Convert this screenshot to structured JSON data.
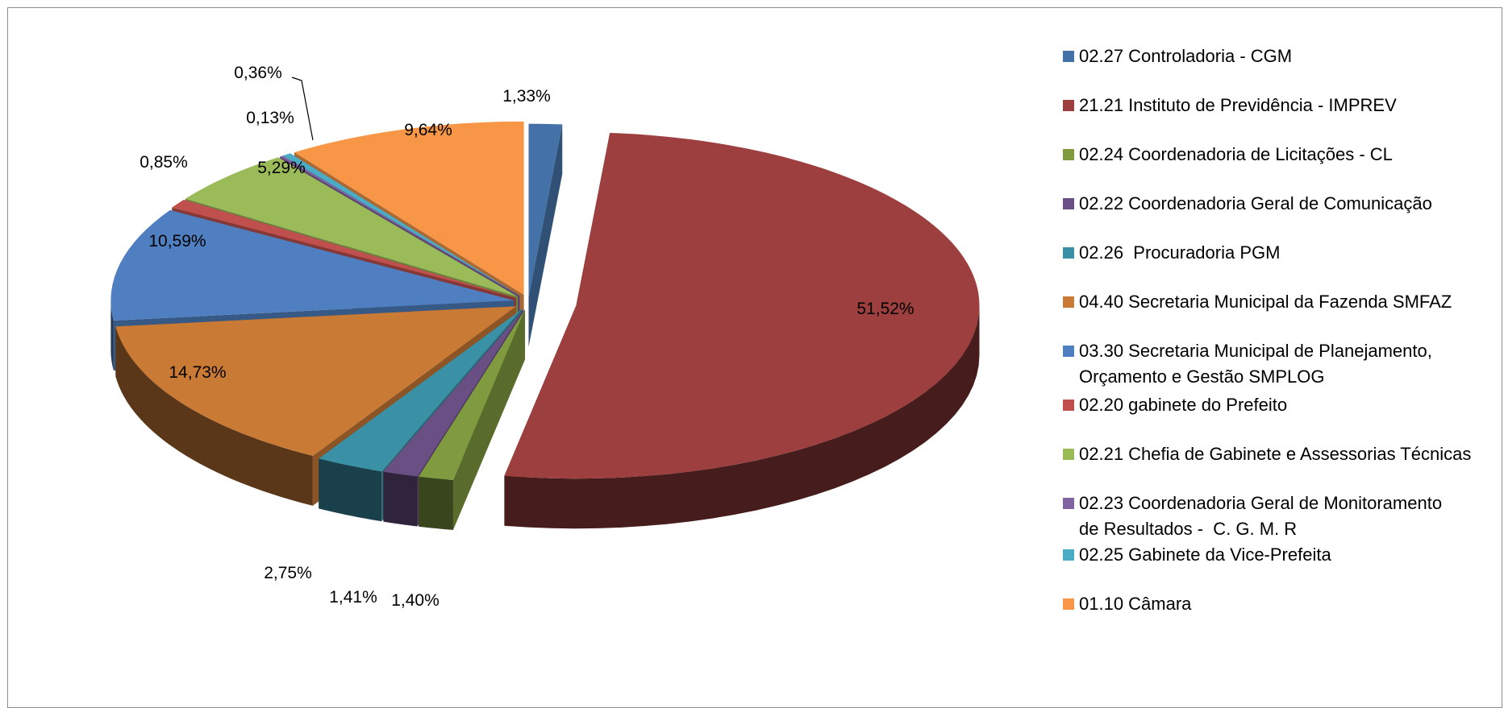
{
  "chart_data": {
    "type": "pie",
    "title": "",
    "slices": [
      {
        "label": "02.27 Controladoria - CGM",
        "value": 1.33,
        "display": "1,33%",
        "color": "#4472a8"
      },
      {
        "label": "21.21 Instituto de Previdência - IMPREV",
        "value": 51.52,
        "display": "51,52%",
        "color": "#9c3f3e"
      },
      {
        "label": "02.24 Coordenadoria de Licitações - CL",
        "value": 1.4,
        "display": "1,40%",
        "color": "#7f9a3f"
      },
      {
        "label": "02.22 Coordenadoria Geral de Comunicação",
        "value": 1.41,
        "display": "1,41%",
        "color": "#6a4f85"
      },
      {
        "label": "02.26  Procuradoria PGM",
        "value": 2.75,
        "display": "2,75%",
        "color": "#3a91a6"
      },
      {
        "label": "04.40 Secretaria Municipal da Fazenda SMFAZ",
        "value": 14.73,
        "display": "14,73%",
        "color": "#c97a35"
      },
      {
        "label": "03.30 Secretaria Municipal de Planejamento,\nOrçamento e Gestão SMPLOG",
        "value": 10.59,
        "display": "10,59%",
        "color": "#4f7fc0"
      },
      {
        "label": "02.20 gabinete do Prefeito",
        "value": 0.85,
        "display": "0,85%",
        "color": "#c0504d"
      },
      {
        "label": "02.21 Chefia de Gabinete e Assessorias Técnicas",
        "value": 5.29,
        "display": "5,29%",
        "color": "#9bbb59"
      },
      {
        "label": "02.23 Coordenadoria Geral de Monitoramento\nde Resultados -  C. G. M. R",
        "value": 0.13,
        "display": "0,13%",
        "color": "#8064a2"
      },
      {
        "label": "02.25 Gabinete da Vice-Prefeita",
        "value": 0.36,
        "display": "0,36%",
        "color": "#4bacc6"
      },
      {
        "label": "01.10 Câmara",
        "value": 9.64,
        "display": "9,64%",
        "color": "#f79646"
      }
    ],
    "legend_position": "right",
    "style": "3d-exploded"
  }
}
